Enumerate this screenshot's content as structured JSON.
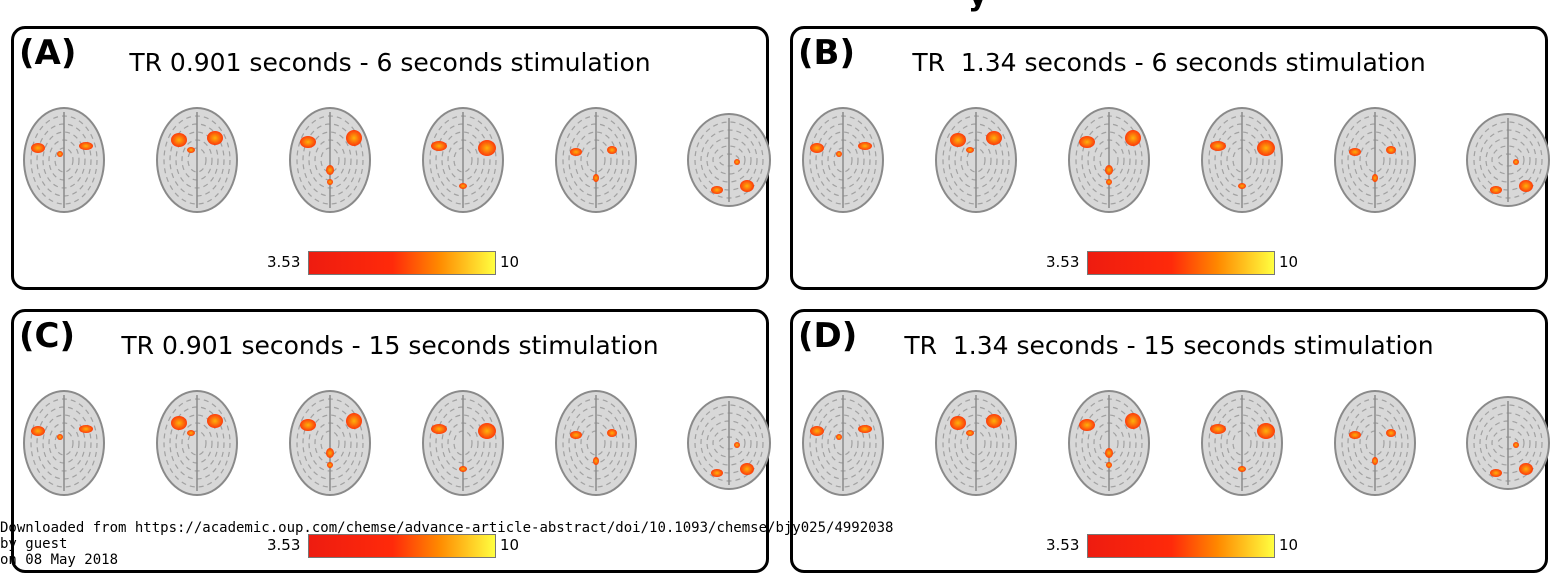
{
  "header": {
    "cut_text": "y"
  },
  "colorbar_colors": {
    "c0": "#ee1c10",
    "c1": "#ff2a0a",
    "c2": "#ff8a00",
    "c3": "#ffff40"
  },
  "brain_colors": {
    "tissue_light": "#d8d8d8",
    "tissue_dark": "#8a8a8a",
    "activation_hot": "#ff3300",
    "activation_core": "#ffb000"
  },
  "panels": [
    {
      "letter": "(A)",
      "title": "TR 0.901 seconds - 6 seconds stimulation",
      "colorbar": {
        "min": "3.53",
        "max": "10"
      },
      "slices": 6
    },
    {
      "letter": "(B)",
      "title": "TR  1.34 seconds - 6 seconds stimulation",
      "colorbar": {
        "min": "3.53",
        "max": "10"
      },
      "slices": 6
    },
    {
      "letter": "(C)",
      "title": "TR 0.901 seconds - 15 seconds stimulation",
      "colorbar": {
        "min": "3.53",
        "max": "10"
      },
      "slices": 6
    },
    {
      "letter": "(D)",
      "title": "TR  1.34 seconds - 15 seconds stimulation",
      "colorbar": {
        "min": "3.53",
        "max": "10"
      },
      "slices": 6
    }
  ],
  "watermark": {
    "line1": "Downloaded from https://academic.oup.com/chemse/advance-article-abstract/doi/10.1093/chemse/bjy025/4992038",
    "line2": "by guest",
    "line3": "on 08 May 2018"
  }
}
